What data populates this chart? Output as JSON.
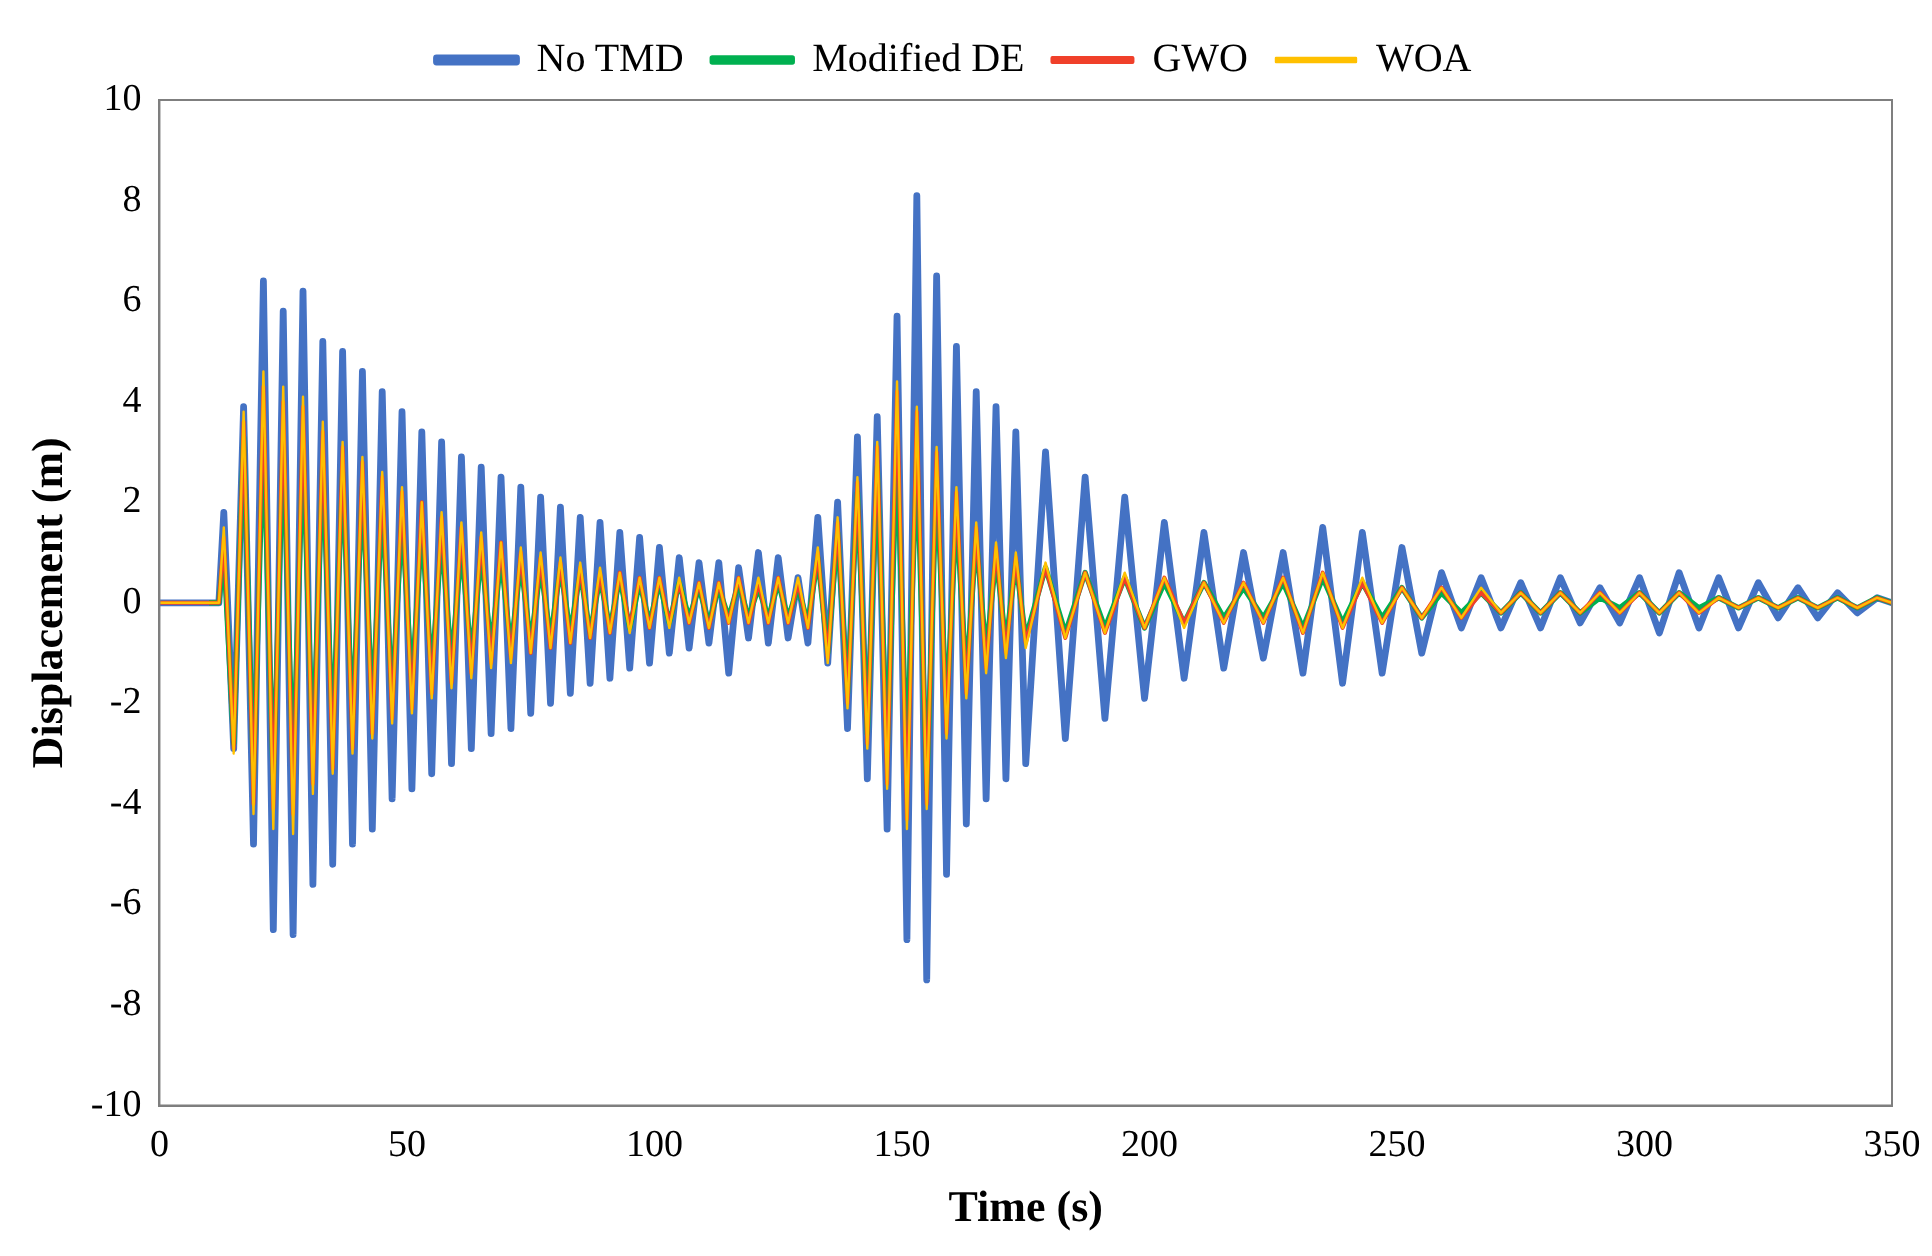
{
  "chart_data": {
    "type": "line",
    "xlabel": "Time (s)",
    "ylabel": "Displacement (m)",
    "x": [
      0,
      5,
      10,
      12,
      13,
      15,
      17,
      19,
      21,
      23,
      25,
      27,
      29,
      31,
      33,
      35,
      37,
      39,
      41,
      43,
      45,
      47,
      49,
      51,
      53,
      55,
      57,
      59,
      61,
      63,
      65,
      67,
      69,
      71,
      73,
      75,
      77,
      79,
      81,
      83,
      85,
      87,
      89,
      91,
      93,
      95,
      97,
      99,
      101,
      103,
      105,
      107,
      109,
      111,
      113,
      115,
      117,
      119,
      121,
      123,
      125,
      127,
      129,
      131,
      133,
      135,
      137,
      139,
      141,
      143,
      145,
      147,
      149,
      151,
      153,
      155,
      157,
      159,
      161,
      163,
      165,
      167,
      169,
      171,
      173,
      175,
      179,
      183,
      187,
      191,
      195,
      199,
      203,
      207,
      211,
      215,
      219,
      223,
      227,
      231,
      235,
      239,
      243,
      247,
      251,
      255,
      259,
      263,
      267,
      271,
      275,
      279,
      283,
      287,
      291,
      295,
      299,
      303,
      307,
      311,
      315,
      319,
      323,
      327,
      331,
      335,
      339,
      343,
      347,
      350
    ],
    "series": [
      {
        "name": "No TMD",
        "color": "#4472c4",
        "values": [
          0,
          0,
          0,
          0,
          1.8,
          -2.9,
          3.9,
          -4.8,
          6.4,
          -6.5,
          5.8,
          -6.6,
          6.2,
          -5.6,
          5.2,
          -5.2,
          5.0,
          -4.8,
          4.6,
          -4.5,
          4.2,
          -3.9,
          3.8,
          -3.7,
          3.4,
          -3.4,
          3.2,
          -3.2,
          2.9,
          -2.9,
          2.7,
          -2.6,
          2.5,
          -2.5,
          2.3,
          -2.2,
          2.1,
          -2.0,
          1.9,
          -1.8,
          1.7,
          -1.6,
          1.6,
          -1.5,
          1.4,
          -1.3,
          1.3,
          -1.2,
          1.1,
          -1.0,
          0.9,
          -0.9,
          0.8,
          -0.8,
          0.8,
          -1.4,
          0.7,
          -0.7,
          1.0,
          -0.8,
          0.9,
          -0.7,
          0.5,
          -0.8,
          1.7,
          -1.2,
          2.0,
          -2.5,
          3.3,
          -3.5,
          3.7,
          -4.5,
          5.7,
          -6.7,
          8.1,
          -7.5,
          6.5,
          -5.4,
          5.1,
          -4.4,
          4.2,
          -3.9,
          3.9,
          -3.5,
          3.4,
          -3.2,
          3.0,
          -2.7,
          2.5,
          -2.3,
          2.1,
          -1.9,
          1.6,
          -1.5,
          1.4,
          -1.3,
          1.0,
          -1.1,
          1.0,
          -1.4,
          1.5,
          -1.6,
          1.4,
          -1.4,
          1.1,
          -1.0,
          0.6,
          -0.5,
          0.5,
          -0.5,
          0.4,
          -0.5,
          0.5,
          -0.4,
          0.3,
          -0.4,
          0.5,
          -0.6,
          0.6,
          -0.5,
          0.5,
          -0.5,
          0.4,
          -0.3,
          0.3,
          -0.3,
          0.2,
          -0.2,
          0.1,
          0
        ]
      },
      {
        "name": "Modified DE",
        "color": "#00b050",
        "values": [
          null,
          null,
          0,
          0,
          1.0,
          -2.8,
          3.3,
          -3.5,
          3.4,
          -3.6,
          3.2,
          -3.4,
          3.1,
          -3.0,
          2.8,
          -2.7,
          2.6,
          -2.4,
          2.3,
          -2.1,
          2.0,
          -1.9,
          1.7,
          -1.6,
          1.5,
          -1.4,
          1.3,
          -1.2,
          1.1,
          -1.1,
          1.0,
          -0.9,
          0.9,
          -0.9,
          0.8,
          -0.8,
          0.7,
          -0.7,
          0.7,
          -0.6,
          0.6,
          -0.6,
          0.5,
          -0.5,
          0.5,
          -0.5,
          0.4,
          -0.4,
          0.4,
          -0.4,
          0.4,
          -0.3,
          0.3,
          -0.4,
          0.3,
          -0.3,
          0.4,
          -0.3,
          0.3,
          -0.3,
          0.4,
          -0.3,
          0.3,
          -0.4,
          0.9,
          -1.0,
          1.4,
          -1.8,
          2.2,
          -2.6,
          2.7,
          -3.0,
          3.0,
          -3.2,
          3.0,
          -3.7,
          2.5,
          -2.2,
          1.8,
          -1.5,
          1.3,
          -1.0,
          0.9,
          -0.8,
          0.8,
          -0.7,
          0.7,
          -0.6,
          0.6,
          -0.5,
          0.5,
          -0.5,
          0.4,
          -0.4,
          0.4,
          -0.3,
          0.3,
          -0.3,
          0.4,
          -0.5,
          0.5,
          -0.4,
          0.4,
          -0.3,
          0.3,
          -0.3,
          0.2,
          -0.2,
          0.2,
          -0.2,
          0.2,
          -0.2,
          0.2,
          -0.2,
          0.1,
          -0.1,
          0.2,
          -0.2,
          0.2,
          -0.1,
          0.1,
          -0.1,
          0.1,
          -0.1,
          0.1,
          -0.1,
          0.1,
          -0.1,
          0.1,
          0
        ]
      },
      {
        "name": "GWO",
        "color": "#f0402a",
        "values": [
          0,
          0,
          0,
          0,
          1.3,
          -2.9,
          3.6,
          -4.0,
          4.3,
          -4.1,
          4.0,
          -4.2,
          3.9,
          -3.6,
          3.4,
          -3.3,
          3.1,
          -2.9,
          2.8,
          -2.6,
          2.5,
          -2.3,
          2.2,
          -2.1,
          2.0,
          -1.8,
          1.7,
          -1.6,
          1.5,
          -1.4,
          1.3,
          -1.2,
          1.2,
          -1.1,
          1.0,
          -1.0,
          0.9,
          -0.9,
          0.8,
          -0.8,
          0.7,
          -0.7,
          0.6,
          -0.6,
          0.6,
          -0.5,
          0.5,
          -0.5,
          0.5,
          -0.4,
          0.4,
          -0.4,
          0.4,
          -0.5,
          0.4,
          -0.4,
          0.5,
          -0.4,
          0.4,
          -0.4,
          0.5,
          -0.4,
          0.4,
          -0.5,
          1.0,
          -1.1,
          1.6,
          -2.0,
          2.4,
          -2.8,
          3.1,
          -3.6,
          4.2,
          -4.3,
          3.8,
          -4.0,
          3.0,
          -2.6,
          2.2,
          -1.8,
          1.5,
          -1.3,
          1.1,
          -1.0,
          0.9,
          -0.8,
          0.7,
          -0.7,
          0.6,
          -0.6,
          0.5,
          -0.5,
          0.5,
          -0.4,
          0.4,
          -0.4,
          0.4,
          -0.4,
          0.5,
          -0.6,
          0.6,
          -0.5,
          0.4,
          -0.4,
          0.3,
          -0.3,
          0.3,
          -0.3,
          0.2,
          -0.2,
          0.2,
          -0.2,
          0.2,
          -0.2,
          0.2,
          -0.2,
          0.2,
          -0.2,
          0.2,
          -0.2,
          0.1,
          -0.1,
          0.1,
          -0.1,
          0.1,
          -0.1,
          0.1,
          -0.1,
          0.1,
          0
        ]
      },
      {
        "name": "WOA",
        "color": "#ffc000",
        "values": [
          0,
          0,
          0,
          0,
          1.5,
          -3.0,
          3.8,
          -4.2,
          4.6,
          -4.5,
          4.3,
          -4.6,
          4.1,
          -3.8,
          3.6,
          -3.4,
          3.2,
          -3.0,
          2.9,
          -2.7,
          2.6,
          -2.4,
          2.3,
          -2.2,
          2.0,
          -1.9,
          1.8,
          -1.7,
          1.6,
          -1.5,
          1.4,
          -1.3,
          1.2,
          -1.2,
          1.1,
          -1.0,
          1.0,
          -0.9,
          0.9,
          -0.8,
          0.8,
          -0.7,
          0.7,
          -0.6,
          0.6,
          -0.6,
          0.5,
          -0.5,
          0.5,
          -0.5,
          0.5,
          -0.4,
          0.4,
          -0.5,
          0.4,
          -0.4,
          0.5,
          -0.4,
          0.5,
          -0.4,
          0.5,
          -0.4,
          0.5,
          -0.5,
          1.1,
          -1.2,
          1.7,
          -2.1,
          2.5,
          -2.9,
          3.2,
          -3.7,
          4.4,
          -4.5,
          3.9,
          -4.1,
          3.1,
          -2.7,
          2.3,
          -1.9,
          1.6,
          -1.4,
          1.2,
          -1.1,
          1.0,
          -0.9,
          0.8,
          -0.7,
          0.6,
          -0.6,
          0.6,
          -0.5,
          0.5,
          -0.5,
          0.4,
          -0.4,
          0.4,
          -0.4,
          0.5,
          -0.6,
          0.6,
          -0.5,
          0.5,
          -0.4,
          0.3,
          -0.3,
          0.3,
          -0.3,
          0.3,
          -0.2,
          0.2,
          -0.2,
          0.2,
          -0.2,
          0.2,
          -0.2,
          0.2,
          -0.2,
          0.2,
          -0.2,
          0.1,
          -0.1,
          0.1,
          -0.1,
          0.1,
          -0.1,
          0.1,
          -0.1,
          0.1,
          0
        ]
      }
    ],
    "xlim": [
      0,
      350
    ],
    "xticks": [
      0,
      50,
      100,
      150,
      200,
      250,
      300,
      350
    ],
    "ylim": [
      -10,
      10
    ],
    "yticks": [
      -10,
      -8,
      -6,
      -4,
      -2,
      0,
      2,
      4,
      6,
      8,
      10
    ],
    "grid": false,
    "legend": "top",
    "marker": "none",
    "line_style": "solid"
  }
}
